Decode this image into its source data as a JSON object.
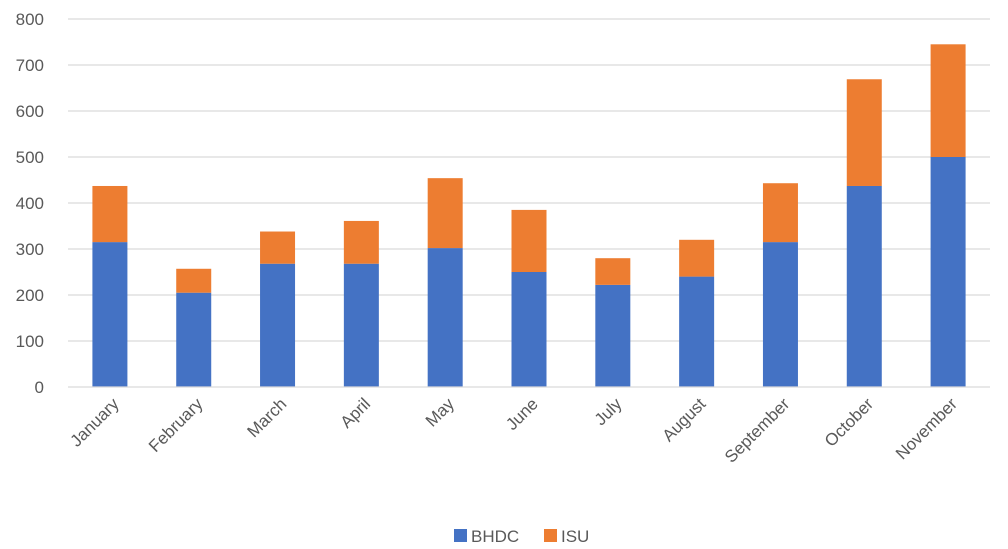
{
  "chart_data": {
    "type": "bar",
    "stacked": true,
    "title": "",
    "xlabel": "",
    "ylabel": "",
    "ylim": [
      0,
      800
    ],
    "yticks": [
      0,
      100,
      200,
      300,
      400,
      500,
      600,
      700,
      800
    ],
    "grid": true,
    "legend_position": "bottom",
    "categories": [
      "January",
      "February",
      "March",
      "April",
      "May",
      "June",
      "July",
      "August",
      "September",
      "October",
      "November"
    ],
    "series": [
      {
        "name": "BHDC",
        "color": "#4472C4",
        "values": [
          315,
          205,
          268,
          268,
          302,
          250,
          222,
          240,
          315,
          437,
          500
        ]
      },
      {
        "name": "ISU",
        "color": "#ED7D31",
        "values": [
          122,
          52,
          70,
          93,
          152,
          135,
          58,
          80,
          128,
          232,
          245
        ]
      }
    ]
  }
}
